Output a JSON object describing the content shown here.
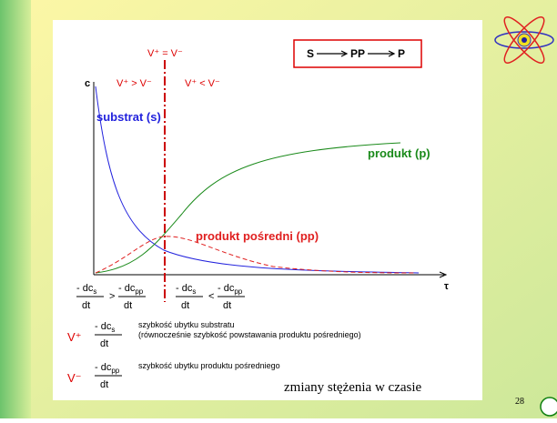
{
  "slide": {
    "reaction": [
      "S",
      "PP",
      "P"
    ],
    "equal_label": "V⁺ = V⁻",
    "left_label": "V⁺ > V⁻",
    "right_label": "V⁺ < V⁻",
    "y_axis_label": "c",
    "x_axis_label": "τ",
    "curves": {
      "substrate": "substrat (s)",
      "product": "produkt (p)",
      "intermediate": "produkt pośredni (pp)"
    },
    "comparisons": [
      {
        "left": {
          "num": "- dc",
          "sub": "s",
          "den": "dt"
        },
        "sign": ">",
        "right": {
          "num": "- dc",
          "sub": "pp",
          "den": "dt"
        }
      },
      {
        "left": {
          "num": "- dc",
          "sub": "s",
          "den": "dt"
        },
        "sign": "<",
        "right": {
          "num": "- dc",
          "sub": "pp",
          "den": "dt"
        }
      }
    ],
    "legend": [
      {
        "symbol": "V⁺",
        "num": "- dc",
        "sub": "s",
        "den": "dt",
        "text": [
          "szybkość ubytku substratu",
          "(równocześnie szybkość powstawania produktu pośredniego)"
        ]
      },
      {
        "symbol": "V⁻",
        "num": "- dc",
        "sub": "pp",
        "den": "dt",
        "text": [
          "szybkość ubytku produktu pośredniego"
        ]
      }
    ],
    "caption": "zmiany stężenia w czasie",
    "page_number": "28"
  }
}
